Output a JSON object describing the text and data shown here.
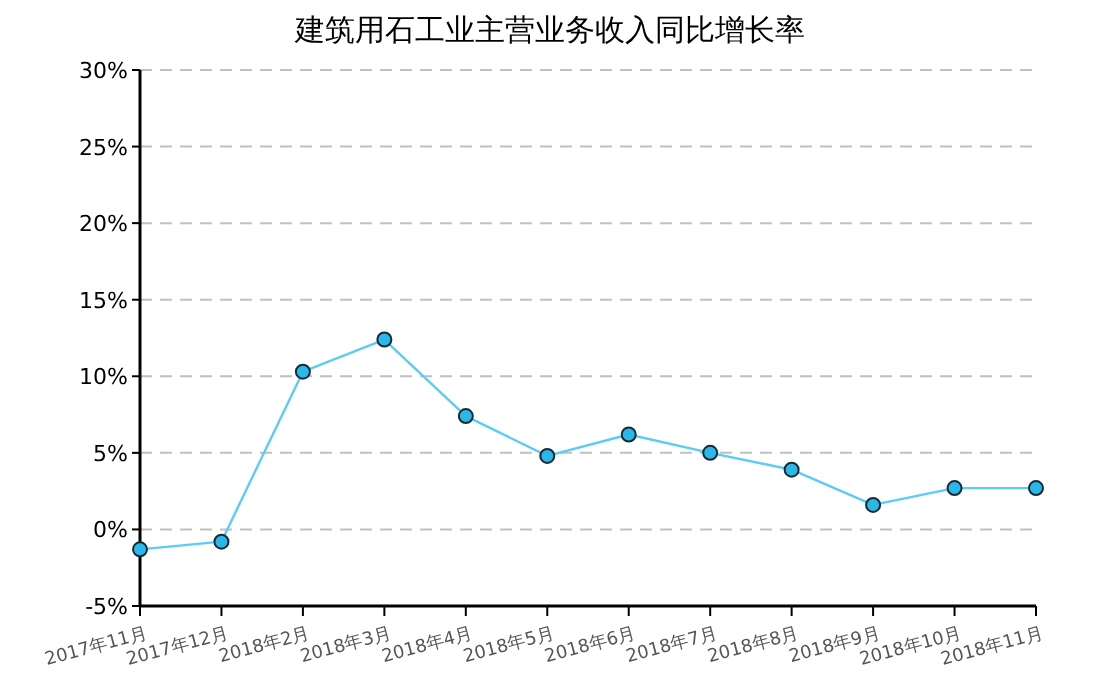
{
  "chart_data": {
    "type": "line",
    "title": "建筑用石工业主营业务收入同比增长率",
    "categories": [
      "2017年11月",
      "2017年12月",
      "2018年2月",
      "2018年3月",
      "2018年4月",
      "2018年5月",
      "2018年6月",
      "2018年7月",
      "2018年8月",
      "2018年9月",
      "2018年10月",
      "2018年11月"
    ],
    "series": [
      {
        "color": "#5bcdf5",
        "values": [
          -1.3,
          -0.8,
          10.3,
          12.4,
          7.4,
          4.8,
          6.2,
          5.0,
          3.9,
          1.6,
          2.7,
          2.7
        ]
      }
    ],
    "ylim": [
      -5,
      30
    ],
    "yticks": [
      {
        "value": -5,
        "label": "-5%"
      },
      {
        "value": 0,
        "label": "0%"
      },
      {
        "value": 5,
        "label": "5%"
      },
      {
        "value": 10,
        "label": "10%"
      },
      {
        "value": 15,
        "label": "15%"
      },
      {
        "value": 20,
        "label": "20%"
      },
      {
        "value": 25,
        "label": "25%"
      },
      {
        "value": 30,
        "label": "30%"
      }
    ],
    "grid": "y",
    "marker": "circle",
    "line_style": "solid"
  }
}
